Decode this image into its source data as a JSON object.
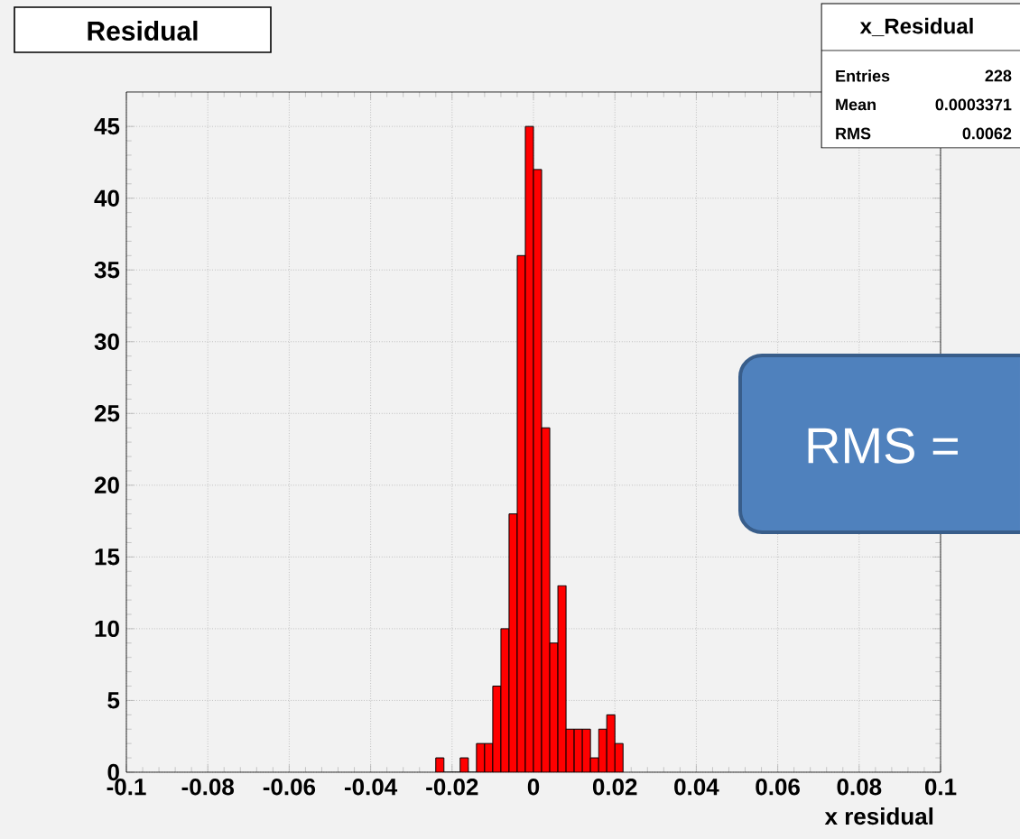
{
  "chart_data": {
    "type": "histogram",
    "title": "Residual",
    "xlabel": "x residual",
    "bins": [
      -0.024,
      -0.022,
      -0.02,
      -0.018,
      -0.016,
      -0.014,
      -0.012,
      -0.01,
      -0.008,
      -0.006,
      -0.004,
      -0.002,
      0,
      0.002,
      0.004,
      0.006,
      0.008,
      0.01,
      0.012,
      0.014,
      0.016,
      0.018,
      0.02,
      0.022
    ],
    "values": [
      1,
      0,
      0,
      1,
      0,
      2,
      2,
      6,
      10,
      18,
      36,
      45,
      42,
      24,
      9,
      13,
      3,
      3,
      3,
      1,
      3,
      4,
      2
    ],
    "color": "#ff0000",
    "xlim": [
      -0.1,
      0.1
    ],
    "xticks": [
      -0.1,
      -0.08,
      -0.06,
      -0.04,
      -0.02,
      0,
      0.02,
      0.04,
      0.06,
      0.08,
      0.1
    ],
    "ylim": [
      0,
      47.4
    ],
    "yticks": [
      0,
      5,
      10,
      15,
      20,
      25,
      30,
      35,
      40,
      45
    ],
    "grid": true,
    "annotations": [
      "x_Residual",
      "Entries",
      "228",
      "Mean",
      "0.0003371",
      "RMS",
      "0.0062",
      "RMS ="
    ]
  }
}
